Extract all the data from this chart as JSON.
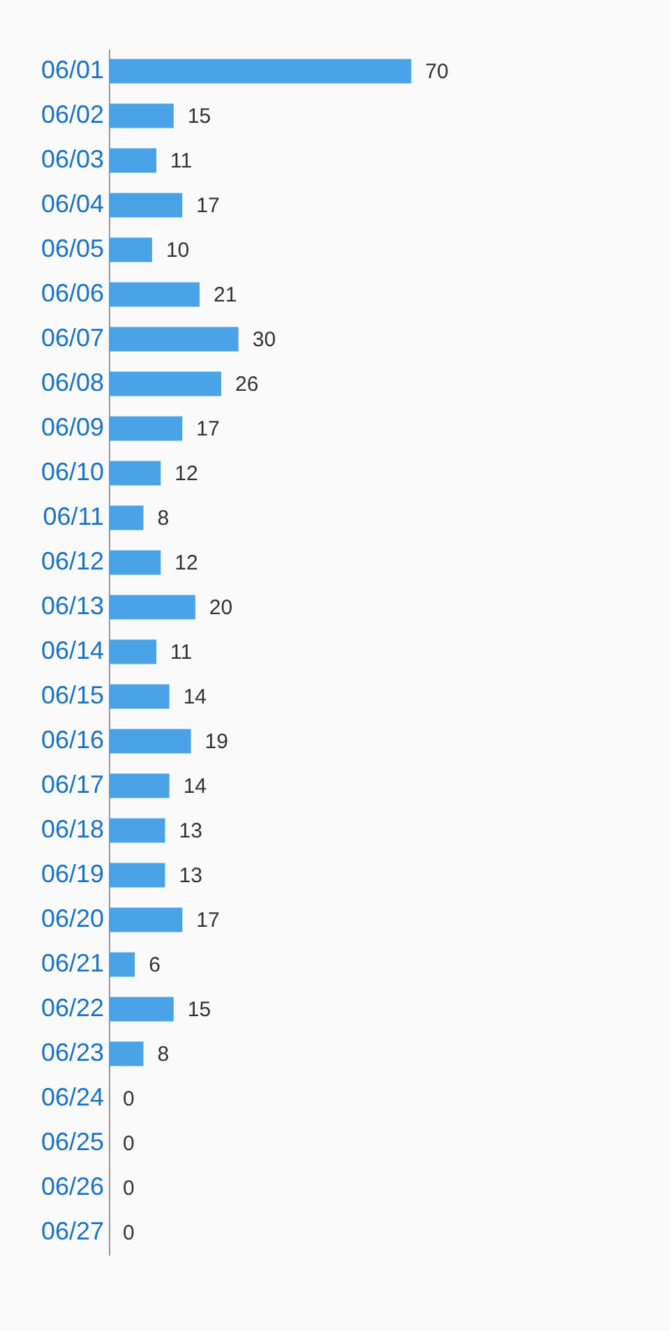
{
  "chart_data": {
    "type": "bar",
    "orientation": "horizontal",
    "categories": [
      "06/01",
      "06/02",
      "06/03",
      "06/04",
      "06/05",
      "06/06",
      "06/07",
      "06/08",
      "06/09",
      "06/10",
      "06/11",
      "06/12",
      "06/13",
      "06/14",
      "06/15",
      "06/16",
      "06/17",
      "06/18",
      "06/19",
      "06/20",
      "06/21",
      "06/22",
      "06/23",
      "06/24",
      "06/25",
      "06/26",
      "06/27"
    ],
    "values": [
      70,
      15,
      11,
      17,
      10,
      21,
      30,
      26,
      17,
      12,
      8,
      12,
      20,
      11,
      14,
      19,
      14,
      13,
      13,
      17,
      6,
      15,
      8,
      0,
      0,
      0,
      0
    ],
    "color": "#4aa3e6",
    "data_labels": true,
    "grid": false
  }
}
